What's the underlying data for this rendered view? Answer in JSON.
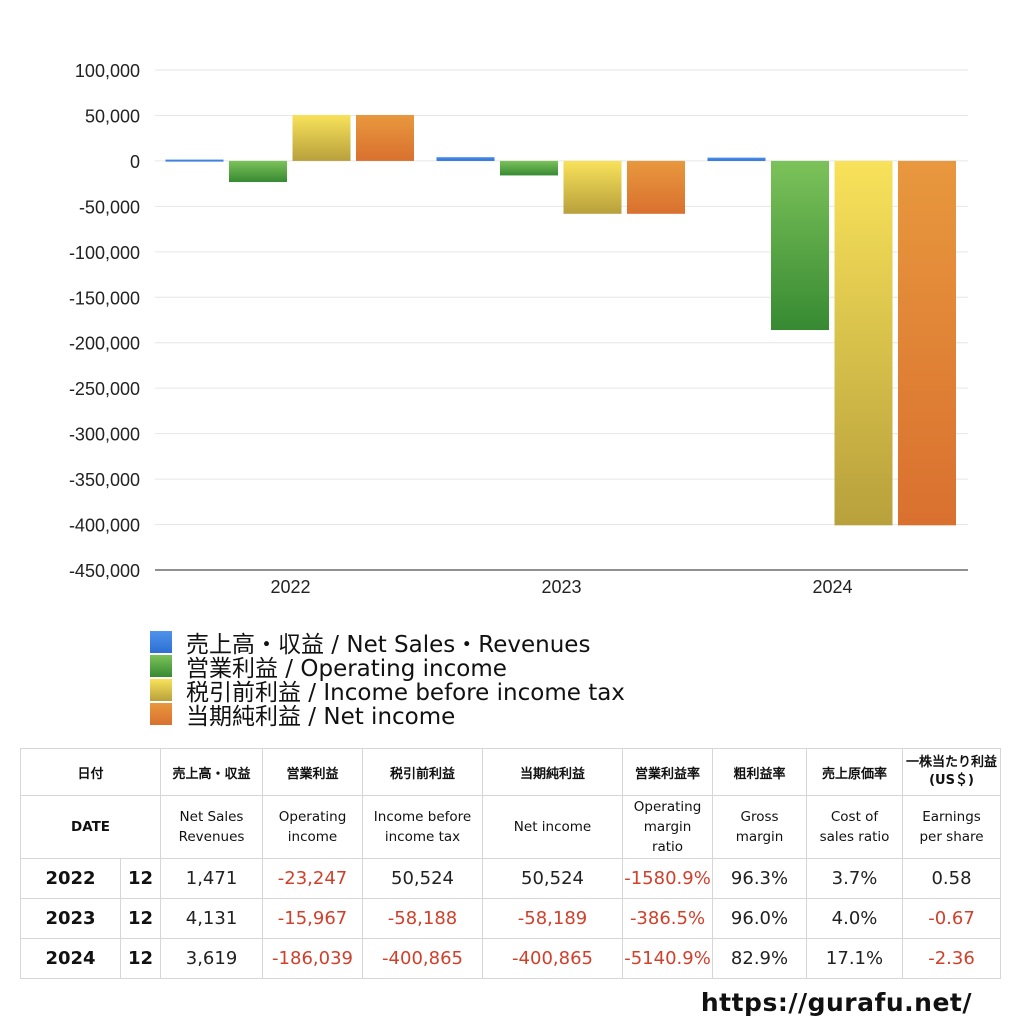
{
  "chart_data": {
    "type": "bar",
    "categories": [
      "2022",
      "2023",
      "2024"
    ],
    "ylim": [
      -450000,
      100000
    ],
    "yticks": [
      100000,
      50000,
      0,
      -50000,
      -100000,
      -150000,
      -200000,
      -250000,
      -300000,
      -350000,
      -400000,
      -450000
    ],
    "ytick_labels": [
      "100,000",
      "50,000",
      "0",
      "-50,000",
      "-100,000",
      "-150,000",
      "-200,000",
      "-250,000",
      "-300,000",
      "-350,000",
      "-400,000",
      "-450,000"
    ],
    "grid": true,
    "legend_position": "bottom",
    "series": [
      {
        "name": "売上高・収益 / Net Sales・Revenues",
        "color": "#3a7fe0",
        "values": [
          1471,
          4131,
          3619
        ]
      },
      {
        "name": "営業利益 / Operating income",
        "color": "#4a9c3c",
        "values": [
          -23247,
          -15967,
          -186039
        ]
      },
      {
        "name": "税引前利益 / Income before income tax",
        "color": "#e4c848",
        "values": [
          50524,
          -58188,
          -400865
        ]
      },
      {
        "name": "当期純利益 / Net income",
        "color": "#e07a35",
        "values": [
          50524,
          -58189,
          -400865
        ]
      }
    ]
  },
  "table": {
    "header_jp": [
      "日付",
      "売上高・収益",
      "営業利益",
      "税引前利益",
      "当期純利益",
      "営業利益率",
      "粗利益率",
      "売上原価率",
      "一株当たり利益",
      "(US＄)"
    ],
    "header_en": [
      "DATE",
      "Net Sales",
      "Revenues",
      "Operating",
      "income",
      "Income before",
      "income tax",
      "Net income",
      "Operating",
      "margin",
      "ratio",
      "Gross",
      "margin",
      "Cost of",
      "sales ratio",
      "Earnings",
      "per share"
    ],
    "rows": [
      {
        "year": "2022",
        "month": "12",
        "sales": "1,471",
        "op": "-23,247",
        "pretax": "50,524",
        "net": "50,524",
        "op_margin": "-1580.9%",
        "gross": "96.3%",
        "cost": "3.7%",
        "eps": "0.58"
      },
      {
        "year": "2023",
        "month": "12",
        "sales": "4,131",
        "op": "-15,967",
        "pretax": "-58,188",
        "net": "-58,189",
        "op_margin": "-386.5%",
        "gross": "96.0%",
        "cost": "4.0%",
        "eps": "-0.67"
      },
      {
        "year": "2024",
        "month": "12",
        "sales": "3,619",
        "op": "-186,039",
        "pretax": "-400,865",
        "net": "-400,865",
        "op_margin": "-5140.9%",
        "gross": "82.9%",
        "cost": "17.1%",
        "eps": "-2.36"
      }
    ]
  },
  "site": "https://gurafu.net/"
}
